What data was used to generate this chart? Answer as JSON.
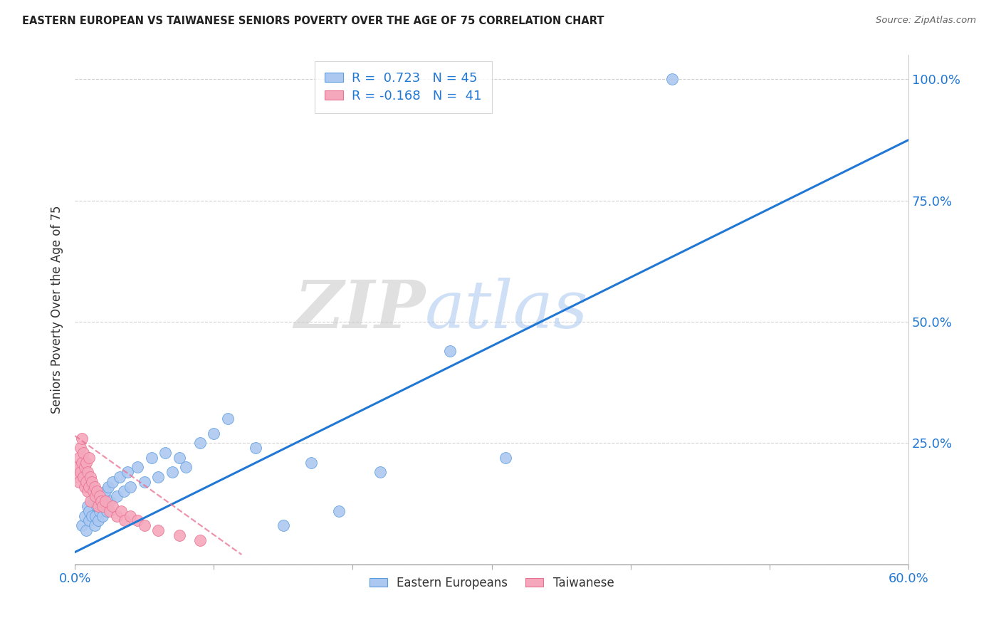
{
  "title": "EASTERN EUROPEAN VS TAIWANESE SENIORS POVERTY OVER THE AGE OF 75 CORRELATION CHART",
  "source": "Source: ZipAtlas.com",
  "ylabel_label": "Seniors Poverty Over the Age of 75",
  "xlim": [
    0.0,
    0.6
  ],
  "ylim": [
    0.0,
    1.05
  ],
  "xticks": [
    0.0,
    0.1,
    0.2,
    0.3,
    0.4,
    0.5,
    0.6
  ],
  "yticks": [
    0.0,
    0.25,
    0.5,
    0.75,
    1.0
  ],
  "ytick_labels_right": [
    "",
    "25.0%",
    "50.0%",
    "75.0%",
    "100.0%"
  ],
  "xtick_labels": [
    "0.0%",
    "",
    "",
    "",
    "",
    "",
    "60.0%"
  ],
  "blue_R": 0.723,
  "blue_N": 45,
  "pink_R": -0.168,
  "pink_N": 41,
  "blue_color": "#adc8f0",
  "pink_color": "#f5a8bc",
  "blue_edge_color": "#5a9de0",
  "pink_edge_color": "#e87090",
  "blue_line_color": "#2178d4",
  "pink_line_color": "#e87090",
  "tick_label_color": "#2178d4",
  "watermark_color": "#ccdff5",
  "legend_label_blue": "Eastern Europeans",
  "legend_label_pink": "Taiwanese",
  "blue_line_x0": 0.0,
  "blue_line_y0": 0.025,
  "blue_line_x1": 0.6,
  "blue_line_y1": 0.875,
  "pink_line_x0": 0.0,
  "pink_line_y0": 0.265,
  "pink_line_x1": 0.12,
  "pink_line_y1": 0.02,
  "blue_x": [
    0.005,
    0.007,
    0.008,
    0.009,
    0.01,
    0.01,
    0.012,
    0.013,
    0.014,
    0.015,
    0.016,
    0.017,
    0.018,
    0.019,
    0.02,
    0.021,
    0.022,
    0.023,
    0.024,
    0.025,
    0.027,
    0.03,
    0.032,
    0.035,
    0.038,
    0.04,
    0.045,
    0.05,
    0.055,
    0.06,
    0.065,
    0.07,
    0.075,
    0.08,
    0.09,
    0.1,
    0.11,
    0.13,
    0.15,
    0.17,
    0.19,
    0.22,
    0.27,
    0.31,
    0.43
  ],
  "blue_y": [
    0.08,
    0.1,
    0.07,
    0.12,
    0.09,
    0.11,
    0.1,
    0.13,
    0.08,
    0.1,
    0.12,
    0.09,
    0.11,
    0.13,
    0.1,
    0.14,
    0.15,
    0.11,
    0.16,
    0.13,
    0.17,
    0.14,
    0.18,
    0.15,
    0.19,
    0.16,
    0.2,
    0.17,
    0.22,
    0.18,
    0.23,
    0.19,
    0.22,
    0.2,
    0.25,
    0.27,
    0.3,
    0.24,
    0.08,
    0.21,
    0.11,
    0.19,
    0.44,
    0.22,
    1.0
  ],
  "pink_x": [
    0.001,
    0.002,
    0.003,
    0.003,
    0.004,
    0.004,
    0.005,
    0.005,
    0.006,
    0.006,
    0.007,
    0.007,
    0.008,
    0.008,
    0.009,
    0.009,
    0.01,
    0.01,
    0.011,
    0.011,
    0.012,
    0.013,
    0.014,
    0.015,
    0.016,
    0.017,
    0.018,
    0.019,
    0.02,
    0.022,
    0.025,
    0.027,
    0.03,
    0.033,
    0.036,
    0.04,
    0.045,
    0.05,
    0.06,
    0.075,
    0.09
  ],
  "pink_y": [
    0.18,
    0.2,
    0.22,
    0.17,
    0.24,
    0.19,
    0.26,
    0.21,
    0.23,
    0.18,
    0.2,
    0.16,
    0.21,
    0.17,
    0.19,
    0.15,
    0.22,
    0.16,
    0.18,
    0.13,
    0.17,
    0.15,
    0.16,
    0.14,
    0.15,
    0.12,
    0.14,
    0.13,
    0.12,
    0.13,
    0.11,
    0.12,
    0.1,
    0.11,
    0.09,
    0.1,
    0.09,
    0.08,
    0.07,
    0.06,
    0.05
  ]
}
